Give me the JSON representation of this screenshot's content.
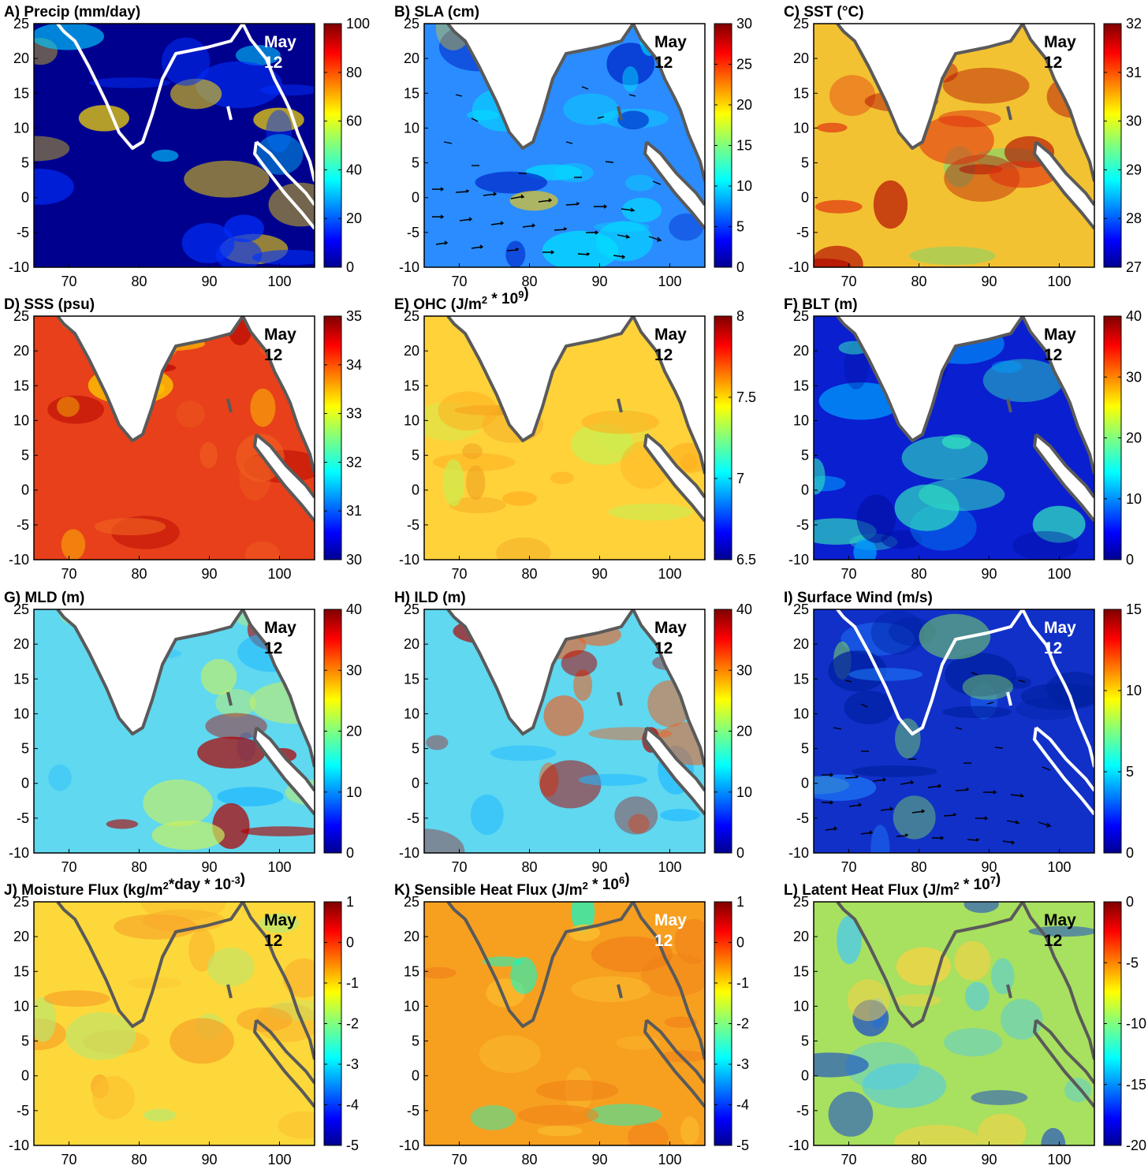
{
  "figure": {
    "date_month": "May",
    "date_day": "12",
    "x_ticks": [
      "70",
      "80",
      "90",
      "100"
    ],
    "y_ticks": [
      "25",
      "20",
      "15",
      "10",
      "5",
      "0",
      "-5",
      "-10"
    ],
    "lon_range": [
      65,
      105
    ],
    "lat_range": [
      -10,
      25
    ]
  },
  "panels": [
    {
      "id": "A",
      "title": "A) Precip (mm/day)",
      "colorbar_ticks": [
        "100",
        "80",
        "60",
        "40",
        "20",
        "0"
      ],
      "base_color": "#00008f",
      "land": "none",
      "coast_color": "#ffffff",
      "date_color": "#ffffff",
      "vectors": false
    },
    {
      "id": "B",
      "title": "B) SLA (cm)",
      "colorbar_ticks": [
        "30",
        "25",
        "20",
        "15",
        "10",
        "5",
        "0"
      ],
      "base_color": "#2a8cff",
      "land": "white",
      "coast_color": "#5a5a5a",
      "date_color": "#000000",
      "vectors": true
    },
    {
      "id": "C",
      "title": "C) SST (°C)",
      "colorbar_ticks": [
        "32",
        "31",
        "30",
        "29",
        "28",
        "27"
      ],
      "base_color": "#f3c232",
      "land": "white",
      "coast_color": "#5a5a5a",
      "date_color": "#000000",
      "vectors": false
    },
    {
      "id": "D",
      "title": "D) SSS (psu)",
      "colorbar_ticks": [
        "35",
        "34",
        "33",
        "32",
        "31",
        "30"
      ],
      "base_color": "#e8401a",
      "land": "white",
      "coast_color": "#5a5a5a",
      "date_color": "#000000",
      "vectors": false
    },
    {
      "id": "E",
      "title_main": "E) OHC (J/m",
      "title_sup1": "2",
      "title_mid": " * 10",
      "title_sup2": "9",
      "title_end": ")",
      "colorbar_ticks": [
        "8",
        "7.5",
        "7",
        "6.5"
      ],
      "base_color": "#ffd23a",
      "land": "white",
      "coast_color": "#5a5a5a",
      "date_color": "#000000",
      "vectors": false
    },
    {
      "id": "F",
      "title": "F) BLT (m)",
      "colorbar_ticks": [
        "40",
        "30",
        "20",
        "10",
        "0"
      ],
      "base_color": "#0a1fd0",
      "land": "white",
      "coast_color": "#5a5a5a",
      "date_color": "#000000",
      "vectors": false
    },
    {
      "id": "G",
      "title": "G) MLD (m)",
      "colorbar_ticks": [
        "40",
        "30",
        "20",
        "10",
        "0"
      ],
      "base_color": "#5fd8f0",
      "land": "white",
      "coast_color": "#5a5a5a",
      "date_color": "#000000",
      "vectors": false
    },
    {
      "id": "H",
      "title": "H) ILD (m)",
      "colorbar_ticks": [
        "40",
        "30",
        "20",
        "10",
        "0"
      ],
      "base_color": "#5fd8f0",
      "land": "white",
      "coast_color": "#5a5a5a",
      "date_color": "#000000",
      "vectors": false
    },
    {
      "id": "I",
      "title": "I) Surface Wind (m/s)",
      "colorbar_ticks": [
        "15",
        "10",
        "5",
        "0"
      ],
      "base_color": "#1030c8",
      "land": "none",
      "coast_color": "#ffffff",
      "date_color": "#ffffff",
      "vectors": true
    },
    {
      "id": "J",
      "title_main": "J) Moisture Flux (kg/m",
      "title_sup1": "2",
      "title_mid": "*day * 10",
      "title_sup2": "-3",
      "title_end": ")",
      "colorbar_ticks": [
        "1",
        "0",
        "-1",
        "-2",
        "-3",
        "-4",
        "-5"
      ],
      "base_color": "#fdd83a",
      "land": "none",
      "coast_color": "#5a5a5a",
      "date_color": "#000000",
      "vectors": false
    },
    {
      "id": "K",
      "title_main": "K) Sensible Heat Flux (J/m",
      "title_sup1": "2",
      "title_mid": " * 10",
      "title_sup2": "6",
      "title_end": ")",
      "colorbar_ticks": [
        "1",
        "0",
        "-1",
        "-2",
        "-3",
        "-4",
        "-5"
      ],
      "base_color": "#f7a020",
      "land": "none",
      "coast_color": "#5a5a5a",
      "date_color": "#ffffff",
      "vectors": false
    },
    {
      "id": "L",
      "title_main": "L) Latent Heat Flux (J/m",
      "title_sup1": "2",
      "title_mid": " * 10",
      "title_sup2": "7",
      "title_end": ")",
      "colorbar_ticks": [
        "0",
        "-5",
        "-10",
        "-15",
        "-20"
      ],
      "base_color": "#a8e060",
      "land": "none",
      "coast_color": "#5a5a5a",
      "date_color": "#000000",
      "vectors": false
    }
  ]
}
